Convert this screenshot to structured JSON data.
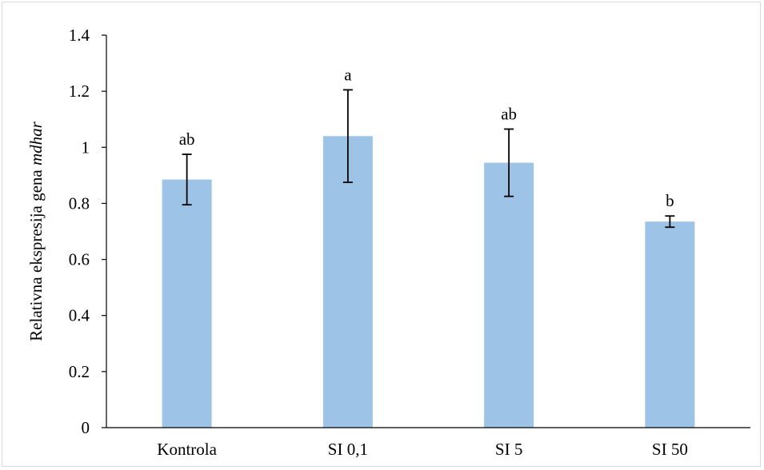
{
  "chart_data": {
    "type": "bar",
    "ylabel": "Relativna ekspresija gena",
    "ylabel_italic": "mdhar",
    "categories": [
      "Kontrola",
      "SI 0,1",
      "SI 5",
      "SI 50"
    ],
    "values": [
      0.885,
      1.04,
      0.945,
      0.735
    ],
    "errors": [
      0.09,
      0.165,
      0.12,
      0.02
    ],
    "significance_labels": [
      "ab",
      "a",
      "ab",
      "b"
    ],
    "ylim": [
      0,
      1.4
    ],
    "yticks": [
      0,
      0.2,
      0.4,
      0.6,
      0.8,
      1,
      1.2,
      1.4
    ],
    "ytick_labels": [
      "0",
      "0.2",
      "0.4",
      "0.6",
      "0.8",
      "1",
      "1.2",
      "1.4"
    ],
    "grid": false,
    "colors": {
      "bar": "#9dc3e6",
      "axis": "#000000",
      "error_bar": "#000000"
    }
  }
}
